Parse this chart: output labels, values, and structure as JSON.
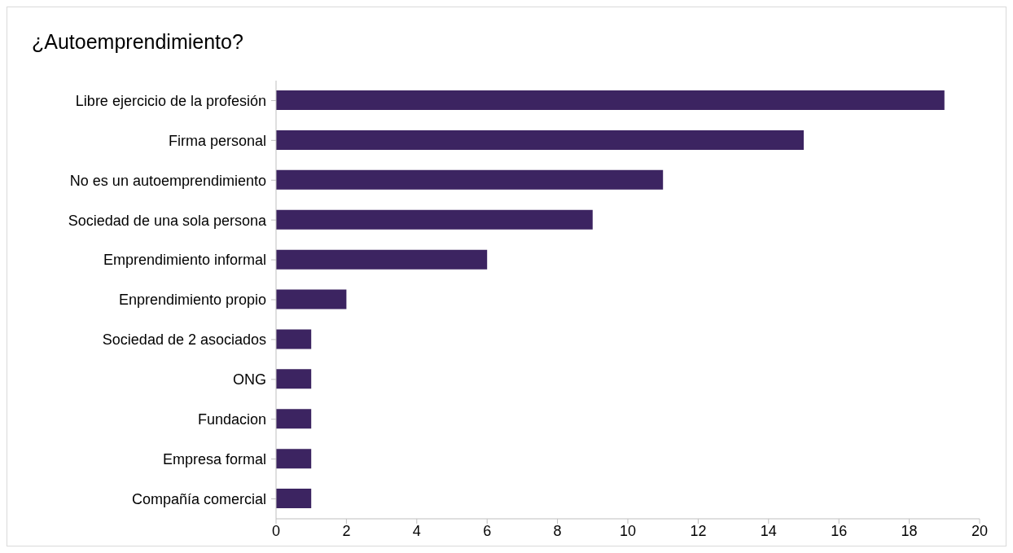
{
  "chart_data": {
    "type": "bar",
    "orientation": "horizontal",
    "title": "¿Autoemprendimiento?",
    "categories": [
      "Libre ejercicio de la profesión",
      "Firma personal",
      "No es un autoemprendimiento",
      "Sociedad de una sola persona",
      "Emprendimiento informal",
      "Enprendimiento propio",
      "Sociedad de 2 asociados",
      "ONG",
      "Fundacion",
      "Empresa formal",
      "Compañía comercial"
    ],
    "values": [
      19,
      15,
      11,
      9,
      6,
      2,
      1,
      1,
      1,
      1,
      1
    ],
    "color": "#3c2461",
    "xlim": [
      0,
      20
    ],
    "xticks": [
      0,
      2,
      4,
      6,
      8,
      10,
      12,
      14,
      16,
      18,
      20
    ],
    "grid": false
  }
}
